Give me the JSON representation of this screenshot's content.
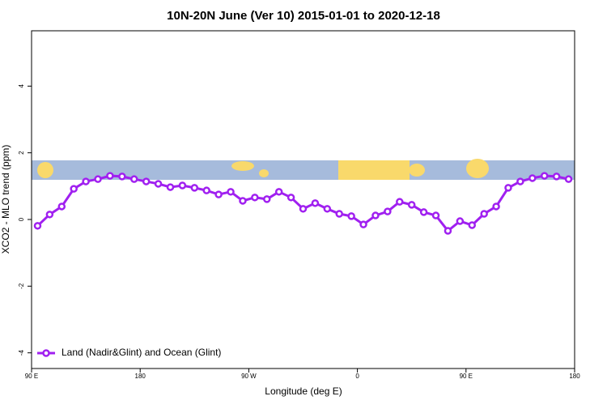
{
  "chart_data": {
    "type": "line",
    "title": "10N-20N June (Ver 10)   2015-01-01 to 2020-12-18",
    "x_label": "Longitude (deg E)",
    "y_label": "XCO2 - MLO trend (ppm)",
    "x": [
      95,
      105,
      115,
      125,
      135,
      145,
      155,
      165,
      175,
      185,
      195,
      205,
      215,
      225,
      235,
      245,
      255,
      265,
      275,
      285,
      295,
      305,
      315,
      325,
      335,
      345,
      355,
      365,
      375,
      385,
      395,
      405,
      415,
      425,
      435,
      445,
      455,
      465,
      475,
      485,
      495,
      505,
      515,
      525,
      535
    ],
    "series": [
      {
        "name": "Land (Nadir&Glint) and Ocean (Glint)",
        "color": "#a020f0",
        "values": [
          -0.19,
          0.15,
          0.39,
          0.92,
          1.14,
          1.21,
          1.31,
          1.29,
          1.21,
          1.14,
          1.07,
          0.97,
          1.02,
          0.95,
          0.87,
          0.75,
          0.83,
          0.56,
          0.66,
          0.61,
          0.83,
          0.66,
          0.32,
          0.49,
          0.32,
          0.17,
          0.1,
          -0.15,
          0.12,
          0.24,
          0.53,
          0.44,
          0.22,
          0.12,
          -0.34,
          -0.05,
          -0.17,
          0.17,
          0.39,
          0.95,
          1.14,
          1.24,
          1.31,
          1.29,
          1.21
        ]
      }
    ],
    "xlim": [
      90,
      540
    ],
    "xticks": [
      {
        "value": 90,
        "label": "90 E"
      },
      180,
      {
        "value": 270,
        "label": "90 W"
      },
      {
        "value": 360,
        "label": "0"
      },
      {
        "value": 450,
        "label": "90 E"
      },
      {
        "value": 540,
        "label": "180"
      }
    ],
    "ylim": [
      -4.47,
      5.66
    ],
    "yticks": [
      -4,
      -2,
      0,
      2,
      4
    ],
    "legend": "bottom-left"
  }
}
